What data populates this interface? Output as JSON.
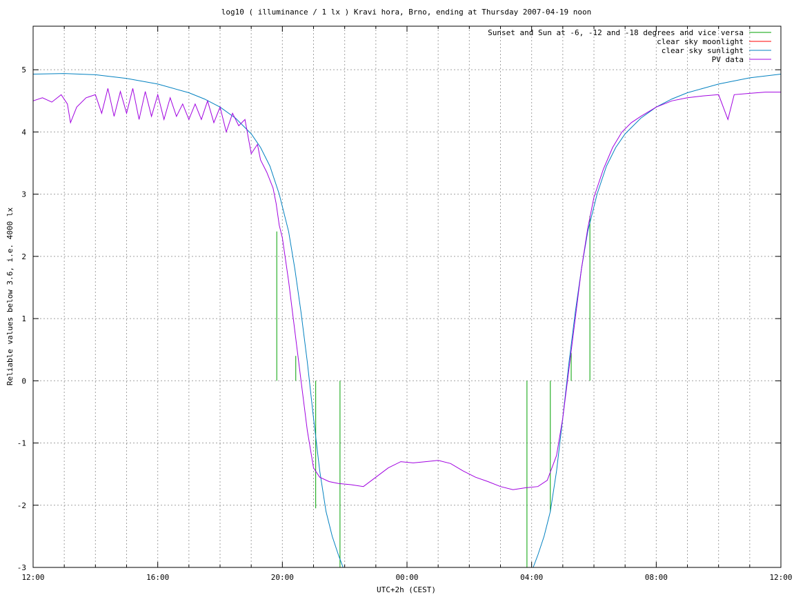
{
  "chart_data": {
    "type": "line",
    "title": "log10 ( illuminance / 1 lx ) Kravi hora, Brno, ending at Thursday 2007-04-19 noon",
    "xlabel": "UTC+2h (CEST)",
    "ylabel": "Reliable values below 3.6, i.e. 4000 lx",
    "x_unit": "hours after 12:00 (2007-04-18)",
    "xlim": [
      0,
      24
    ],
    "ylim": [
      -3,
      5.7
    ],
    "x_ticks": [
      {
        "value": 0,
        "label": "12:00"
      },
      {
        "value": 4,
        "label": "16:00"
      },
      {
        "value": 8,
        "label": "20:00"
      },
      {
        "value": 12,
        "label": "00:00"
      },
      {
        "value": 16,
        "label": "04:00"
      },
      {
        "value": 20,
        "label": "08:00"
      },
      {
        "value": 24,
        "label": "12:00"
      }
    ],
    "y_ticks": [
      {
        "value": -3,
        "label": "-3"
      },
      {
        "value": -2,
        "label": "-2"
      },
      {
        "value": -1,
        "label": "-1"
      },
      {
        "value": 0,
        "label": "0"
      },
      {
        "value": 1,
        "label": "1"
      },
      {
        "value": 2,
        "label": "2"
      },
      {
        "value": 3,
        "label": "3"
      },
      {
        "value": 4,
        "label": "4"
      },
      {
        "value": 5,
        "label": "5"
      }
    ],
    "grid": true,
    "legend_position": "top-right",
    "series": [
      {
        "name": "Sunset and Sun at -6, -12 and -18 degrees and vice versa",
        "kind": "vlines",
        "color": "#00a000",
        "lines": [
          {
            "x": 7.82,
            "y_top": 2.4,
            "y_bottom": 0
          },
          {
            "x": 8.43,
            "y_top": 0.4,
            "y_bottom": 0
          },
          {
            "x": 9.07,
            "y_top": 0,
            "y_bottom": -2.05
          },
          {
            "x": 9.85,
            "y_top": 0,
            "y_bottom": -3
          },
          {
            "x": 15.85,
            "y_top": 0,
            "y_bottom": -3
          },
          {
            "x": 16.6,
            "y_top": 0,
            "y_bottom": -2.1
          },
          {
            "x": 17.27,
            "y_top": 0.45,
            "y_bottom": 0
          },
          {
            "x": 17.87,
            "y_top": 2.65,
            "y_bottom": 0
          }
        ]
      },
      {
        "name": "clear sky moonlight",
        "kind": "line",
        "color": "#ff0000",
        "points": []
      },
      {
        "name": "clear sky sunlight",
        "kind": "line",
        "color": "#0080c0",
        "points": [
          [
            0,
            4.93
          ],
          [
            1,
            4.94
          ],
          [
            2,
            4.92
          ],
          [
            3,
            4.86
          ],
          [
            4,
            4.77
          ],
          [
            5,
            4.63
          ],
          [
            5.5,
            4.53
          ],
          [
            6,
            4.4
          ],
          [
            6.5,
            4.22
          ],
          [
            7,
            3.97
          ],
          [
            7.3,
            3.75
          ],
          [
            7.6,
            3.45
          ],
          [
            7.9,
            3.0
          ],
          [
            8.2,
            2.4
          ],
          [
            8.4,
            1.8
          ],
          [
            8.6,
            1.1
          ],
          [
            8.8,
            0.3
          ],
          [
            9.0,
            -0.6
          ],
          [
            9.2,
            -1.45
          ],
          [
            9.4,
            -2.1
          ],
          [
            9.6,
            -2.5
          ],
          [
            9.8,
            -2.8
          ],
          [
            9.95,
            -3.0
          ],
          [
            16.05,
            -3.0
          ],
          [
            16.2,
            -2.8
          ],
          [
            16.4,
            -2.5
          ],
          [
            16.6,
            -2.1
          ],
          [
            16.8,
            -1.45
          ],
          [
            17.0,
            -0.6
          ],
          [
            17.2,
            0.3
          ],
          [
            17.4,
            1.1
          ],
          [
            17.6,
            1.8
          ],
          [
            17.8,
            2.4
          ],
          [
            18.1,
            3.0
          ],
          [
            18.4,
            3.45
          ],
          [
            18.7,
            3.75
          ],
          [
            19.0,
            3.97
          ],
          [
            19.5,
            4.22
          ],
          [
            20,
            4.4
          ],
          [
            20.5,
            4.53
          ],
          [
            21,
            4.63
          ],
          [
            22,
            4.77
          ],
          [
            23,
            4.87
          ],
          [
            24,
            4.93
          ]
        ]
      },
      {
        "name": "PV data",
        "kind": "line",
        "color": "#a000e0",
        "points": [
          [
            0,
            4.5
          ],
          [
            0.3,
            4.55
          ],
          [
            0.6,
            4.48
          ],
          [
            0.9,
            4.6
          ],
          [
            1.1,
            4.45
          ],
          [
            1.2,
            4.15
          ],
          [
            1.4,
            4.4
          ],
          [
            1.7,
            4.55
          ],
          [
            2.0,
            4.6
          ],
          [
            2.2,
            4.3
          ],
          [
            2.4,
            4.7
          ],
          [
            2.6,
            4.25
          ],
          [
            2.8,
            4.65
          ],
          [
            3.0,
            4.3
          ],
          [
            3.2,
            4.7
          ],
          [
            3.4,
            4.2
          ],
          [
            3.6,
            4.65
          ],
          [
            3.8,
            4.25
          ],
          [
            4.0,
            4.6
          ],
          [
            4.2,
            4.2
          ],
          [
            4.4,
            4.55
          ],
          [
            4.6,
            4.25
          ],
          [
            4.8,
            4.45
          ],
          [
            5.0,
            4.2
          ],
          [
            5.2,
            4.45
          ],
          [
            5.4,
            4.2
          ],
          [
            5.6,
            4.5
          ],
          [
            5.8,
            4.15
          ],
          [
            6.0,
            4.4
          ],
          [
            6.2,
            4.0
          ],
          [
            6.4,
            4.3
          ],
          [
            6.6,
            4.1
          ],
          [
            6.8,
            4.2
          ],
          [
            7.0,
            3.65
          ],
          [
            7.2,
            3.8
          ],
          [
            7.3,
            3.55
          ],
          [
            7.5,
            3.35
          ],
          [
            7.7,
            3.1
          ],
          [
            7.8,
            2.85
          ],
          [
            7.9,
            2.5
          ],
          [
            8.0,
            2.3
          ],
          [
            8.2,
            1.6
          ],
          [
            8.4,
            0.8
          ],
          [
            8.6,
            0.0
          ],
          [
            8.8,
            -0.8
          ],
          [
            9.0,
            -1.4
          ],
          [
            9.2,
            -1.55
          ],
          [
            9.5,
            -1.62
          ],
          [
            9.8,
            -1.65
          ],
          [
            10.2,
            -1.67
          ],
          [
            10.6,
            -1.7
          ],
          [
            11.0,
            -1.55
          ],
          [
            11.4,
            -1.4
          ],
          [
            11.8,
            -1.3
          ],
          [
            12.2,
            -1.32
          ],
          [
            12.6,
            -1.3
          ],
          [
            13.0,
            -1.28
          ],
          [
            13.4,
            -1.33
          ],
          [
            13.8,
            -1.45
          ],
          [
            14.2,
            -1.55
          ],
          [
            14.6,
            -1.62
          ],
          [
            15.0,
            -1.7
          ],
          [
            15.4,
            -1.75
          ],
          [
            15.8,
            -1.72
          ],
          [
            16.2,
            -1.7
          ],
          [
            16.5,
            -1.6
          ],
          [
            16.8,
            -1.2
          ],
          [
            17.0,
            -0.6
          ],
          [
            17.2,
            0.2
          ],
          [
            17.4,
            1.0
          ],
          [
            17.6,
            1.8
          ],
          [
            17.8,
            2.45
          ],
          [
            18.0,
            2.95
          ],
          [
            18.3,
            3.4
          ],
          [
            18.6,
            3.75
          ],
          [
            18.9,
            4.0
          ],
          [
            19.2,
            4.15
          ],
          [
            19.5,
            4.25
          ],
          [
            20.0,
            4.4
          ],
          [
            20.5,
            4.5
          ],
          [
            21.0,
            4.55
          ],
          [
            21.5,
            4.58
          ],
          [
            22.0,
            4.6
          ],
          [
            22.3,
            4.2
          ],
          [
            22.5,
            4.6
          ],
          [
            23.0,
            4.62
          ],
          [
            23.5,
            4.64
          ],
          [
            24.0,
            4.64
          ]
        ]
      }
    ]
  }
}
